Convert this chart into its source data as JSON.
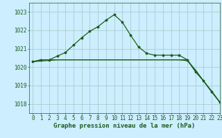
{
  "title": "Graphe pression niveau de la mer (hPa)",
  "bg_color": "#cceeff",
  "grid_color": "#aacccc",
  "line_color": "#1a5c1a",
  "xlim": [
    -0.5,
    23
  ],
  "ylim": [
    1017.5,
    1023.5
  ],
  "yticks": [
    1018,
    1019,
    1020,
    1021,
    1022,
    1023
  ],
  "xticks": [
    0,
    1,
    2,
    3,
    4,
    5,
    6,
    7,
    8,
    9,
    10,
    11,
    12,
    13,
    14,
    15,
    16,
    17,
    18,
    19,
    20,
    21,
    22,
    23
  ],
  "series1_x": [
    0,
    1,
    2,
    3,
    4,
    5,
    6,
    7,
    8,
    9,
    10,
    11,
    12,
    13,
    14,
    15,
    16,
    17,
    18,
    19,
    20,
    21,
    22,
    23
  ],
  "series1_y": [
    1020.3,
    1020.4,
    1020.4,
    1020.6,
    1020.8,
    1021.2,
    1021.6,
    1021.95,
    1022.2,
    1022.55,
    1022.85,
    1022.45,
    1021.75,
    1021.1,
    1020.75,
    1020.65,
    1020.65,
    1020.65,
    1020.65,
    1020.4,
    1019.75,
    1019.25,
    1018.65,
    1018.1
  ],
  "series2_x": [
    0,
    1,
    2,
    3,
    4,
    5,
    6,
    7,
    8,
    9,
    10,
    11,
    12,
    13,
    14,
    15,
    16,
    17,
    18,
    19,
    20,
    21,
    22,
    23
  ],
  "series2_y": [
    1020.3,
    1020.4,
    1020.4,
    1020.4,
    1020.4,
    1020.4,
    1020.4,
    1020.4,
    1020.4,
    1020.4,
    1020.4,
    1020.4,
    1020.4,
    1020.4,
    1020.4,
    1020.4,
    1020.4,
    1020.4,
    1020.4,
    1020.35,
    1019.85,
    1019.25,
    1018.7,
    1018.1
  ],
  "series3_x": [
    0,
    3,
    19,
    23
  ],
  "series3_y": [
    1020.3,
    1020.4,
    1020.4,
    1018.1
  ],
  "marker_size": 2.5,
  "linewidth": 0.9,
  "tick_fontsize": 5.5,
  "title_fontsize": 6.5
}
